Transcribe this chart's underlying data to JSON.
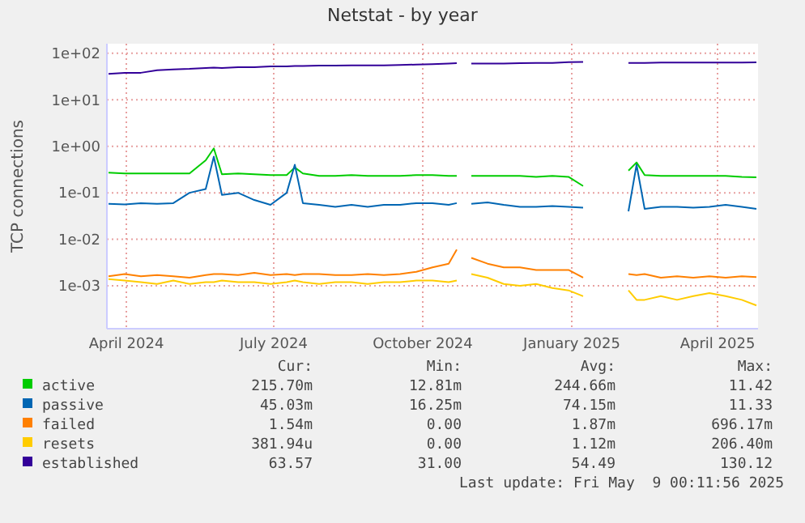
{
  "chart_data": {
    "type": "line",
    "title": "Netstat - by year",
    "ylabel": "TCP connections",
    "log": "y",
    "grid": true,
    "legend": "bottom",
    "line_style": "solid",
    "marker": "none",
    "x": [
      "2024-04-04",
      "2024-04-14",
      "2024-04-24",
      "2024-05-04",
      "2024-05-14",
      "2024-05-24",
      "2024-06-03",
      "2024-06-08",
      "2024-06-13",
      "2024-06-23",
      "2024-07-03",
      "2024-07-13",
      "2024-07-23",
      "2024-07-28",
      "2024-08-02",
      "2024-08-12",
      "2024-08-22",
      "2024-09-01",
      "2024-09-11",
      "2024-09-21",
      "2024-10-01",
      "2024-10-11",
      "2024-10-21",
      "2024-10-31",
      "2024-11-05",
      "2024-11-10",
      "2024-11-14",
      "2024-11-24",
      "2024-12-04",
      "2024-12-14",
      "2024-12-24",
      "2025-01-03",
      "2025-01-13",
      "2025-01-22",
      "2025-02-05",
      "2025-02-19",
      "2025-02-24",
      "2025-03-01",
      "2025-03-11",
      "2025-03-21",
      "2025-03-31",
      "2025-04-10",
      "2025-04-20",
      "2025-04-30",
      "2025-05-09"
    ],
    "series": [
      {
        "name": "active",
        "color": "#00cc00",
        "values": [
          0.27,
          0.26,
          0.26,
          0.26,
          0.26,
          0.26,
          0.5,
          0.9,
          0.25,
          0.26,
          0.25,
          0.24,
          0.24,
          0.35,
          0.26,
          0.23,
          0.23,
          0.24,
          0.23,
          0.23,
          0.23,
          0.24,
          0.24,
          0.23,
          0.23,
          null,
          0.23,
          0.23,
          0.23,
          0.23,
          0.22,
          0.23,
          0.22,
          0.14,
          null,
          0.3,
          0.45,
          0.24,
          0.23,
          0.23,
          0.23,
          0.23,
          0.23,
          0.22,
          0.215
        ]
      },
      {
        "name": "passive",
        "color": "#0066b3",
        "values": [
          0.058,
          0.056,
          0.06,
          0.058,
          0.06,
          0.1,
          0.12,
          0.6,
          0.09,
          0.1,
          0.07,
          0.055,
          0.1,
          0.4,
          0.06,
          0.055,
          0.05,
          0.055,
          0.05,
          0.055,
          0.055,
          0.06,
          0.06,
          0.055,
          0.06,
          null,
          0.058,
          0.062,
          0.055,
          0.05,
          0.05,
          0.052,
          0.05,
          0.048,
          null,
          0.04,
          0.4,
          0.045,
          0.05,
          0.05,
          0.048,
          0.05,
          0.055,
          0.05,
          0.045
        ]
      },
      {
        "name": "failed",
        "color": "#ff8000",
        "values": [
          0.0016,
          0.0018,
          0.0016,
          0.0017,
          0.0016,
          0.0015,
          0.0017,
          0.0018,
          0.0018,
          0.0017,
          0.0019,
          0.0017,
          0.0018,
          0.0017,
          0.0018,
          0.0018,
          0.0017,
          0.0017,
          0.0018,
          0.0017,
          0.0018,
          0.002,
          0.0025,
          0.003,
          0.006,
          null,
          0.004,
          0.003,
          0.0025,
          0.0025,
          0.0022,
          0.0022,
          0.0022,
          0.0015,
          null,
          0.0018,
          0.0017,
          0.0018,
          0.0015,
          0.0016,
          0.0015,
          0.0016,
          0.0015,
          0.0016,
          0.00154
        ]
      },
      {
        "name": "resets",
        "color": "#ffcc00",
        "values": [
          0.0014,
          0.0013,
          0.0012,
          0.0011,
          0.0013,
          0.0011,
          0.0012,
          0.0012,
          0.0013,
          0.0012,
          0.0012,
          0.0011,
          0.0012,
          0.0013,
          0.0012,
          0.0011,
          0.0012,
          0.0012,
          0.0011,
          0.0012,
          0.0012,
          0.0013,
          0.0013,
          0.0012,
          0.0013,
          null,
          0.0018,
          0.0015,
          0.0011,
          0.001,
          0.0011,
          0.0009,
          0.0008,
          0.0006,
          null,
          0.0008,
          0.0005,
          0.0005,
          0.0006,
          0.0005,
          0.0006,
          0.0007,
          0.0006,
          0.0005,
          0.00038
        ]
      },
      {
        "name": "established",
        "color": "#330099",
        "values": [
          36,
          38,
          38,
          43,
          45,
          46,
          48,
          49,
          48,
          50,
          50,
          52,
          52,
          53,
          53,
          54,
          54,
          55,
          55,
          55,
          56,
          57,
          58,
          60,
          61,
          null,
          60,
          60,
          60,
          61,
          62,
          62,
          64,
          65,
          null,
          62,
          62,
          62,
          63,
          63,
          63,
          63,
          63,
          63,
          63.57
        ]
      }
    ],
    "xlim": [
      "2024-04-03",
      "2025-05-10"
    ],
    "xticks": [
      {
        "value": "2024-04-15",
        "label": "April 2024"
      },
      {
        "value": "2024-07-15",
        "label": "July 2024"
      },
      {
        "value": "2024-10-15",
        "label": "October 2024"
      },
      {
        "value": "2025-01-15",
        "label": "January 2025"
      },
      {
        "value": "2025-04-15",
        "label": "April 2025"
      }
    ],
    "ylim": [
      0.00012,
      160
    ],
    "yticks": [
      {
        "value": 0.001,
        "label": "1e-03"
      },
      {
        "value": 0.01,
        "label": "1e-02"
      },
      {
        "value": 0.1,
        "label": "1e-01"
      },
      {
        "value": 1,
        "label": "1e+00"
      },
      {
        "value": 10,
        "label": "1e+01"
      },
      {
        "value": 100,
        "label": "1e+02"
      }
    ],
    "annotations": [
      "Cur:",
      "Min:",
      "Avg:",
      "Max:",
      "215.70m",
      "12.81m",
      "244.66m",
      "11.42",
      "45.03m",
      "16.25m",
      "74.15m",
      "11.33",
      "1.54m",
      "0.00",
      "1.87m",
      "696.17m",
      "381.94u",
      "0.00",
      "1.12m",
      "206.40m",
      "63.57",
      "31.00",
      "54.49",
      "130.12",
      "Last update: Fri May  9 00:11:56 2025"
    ]
  }
}
